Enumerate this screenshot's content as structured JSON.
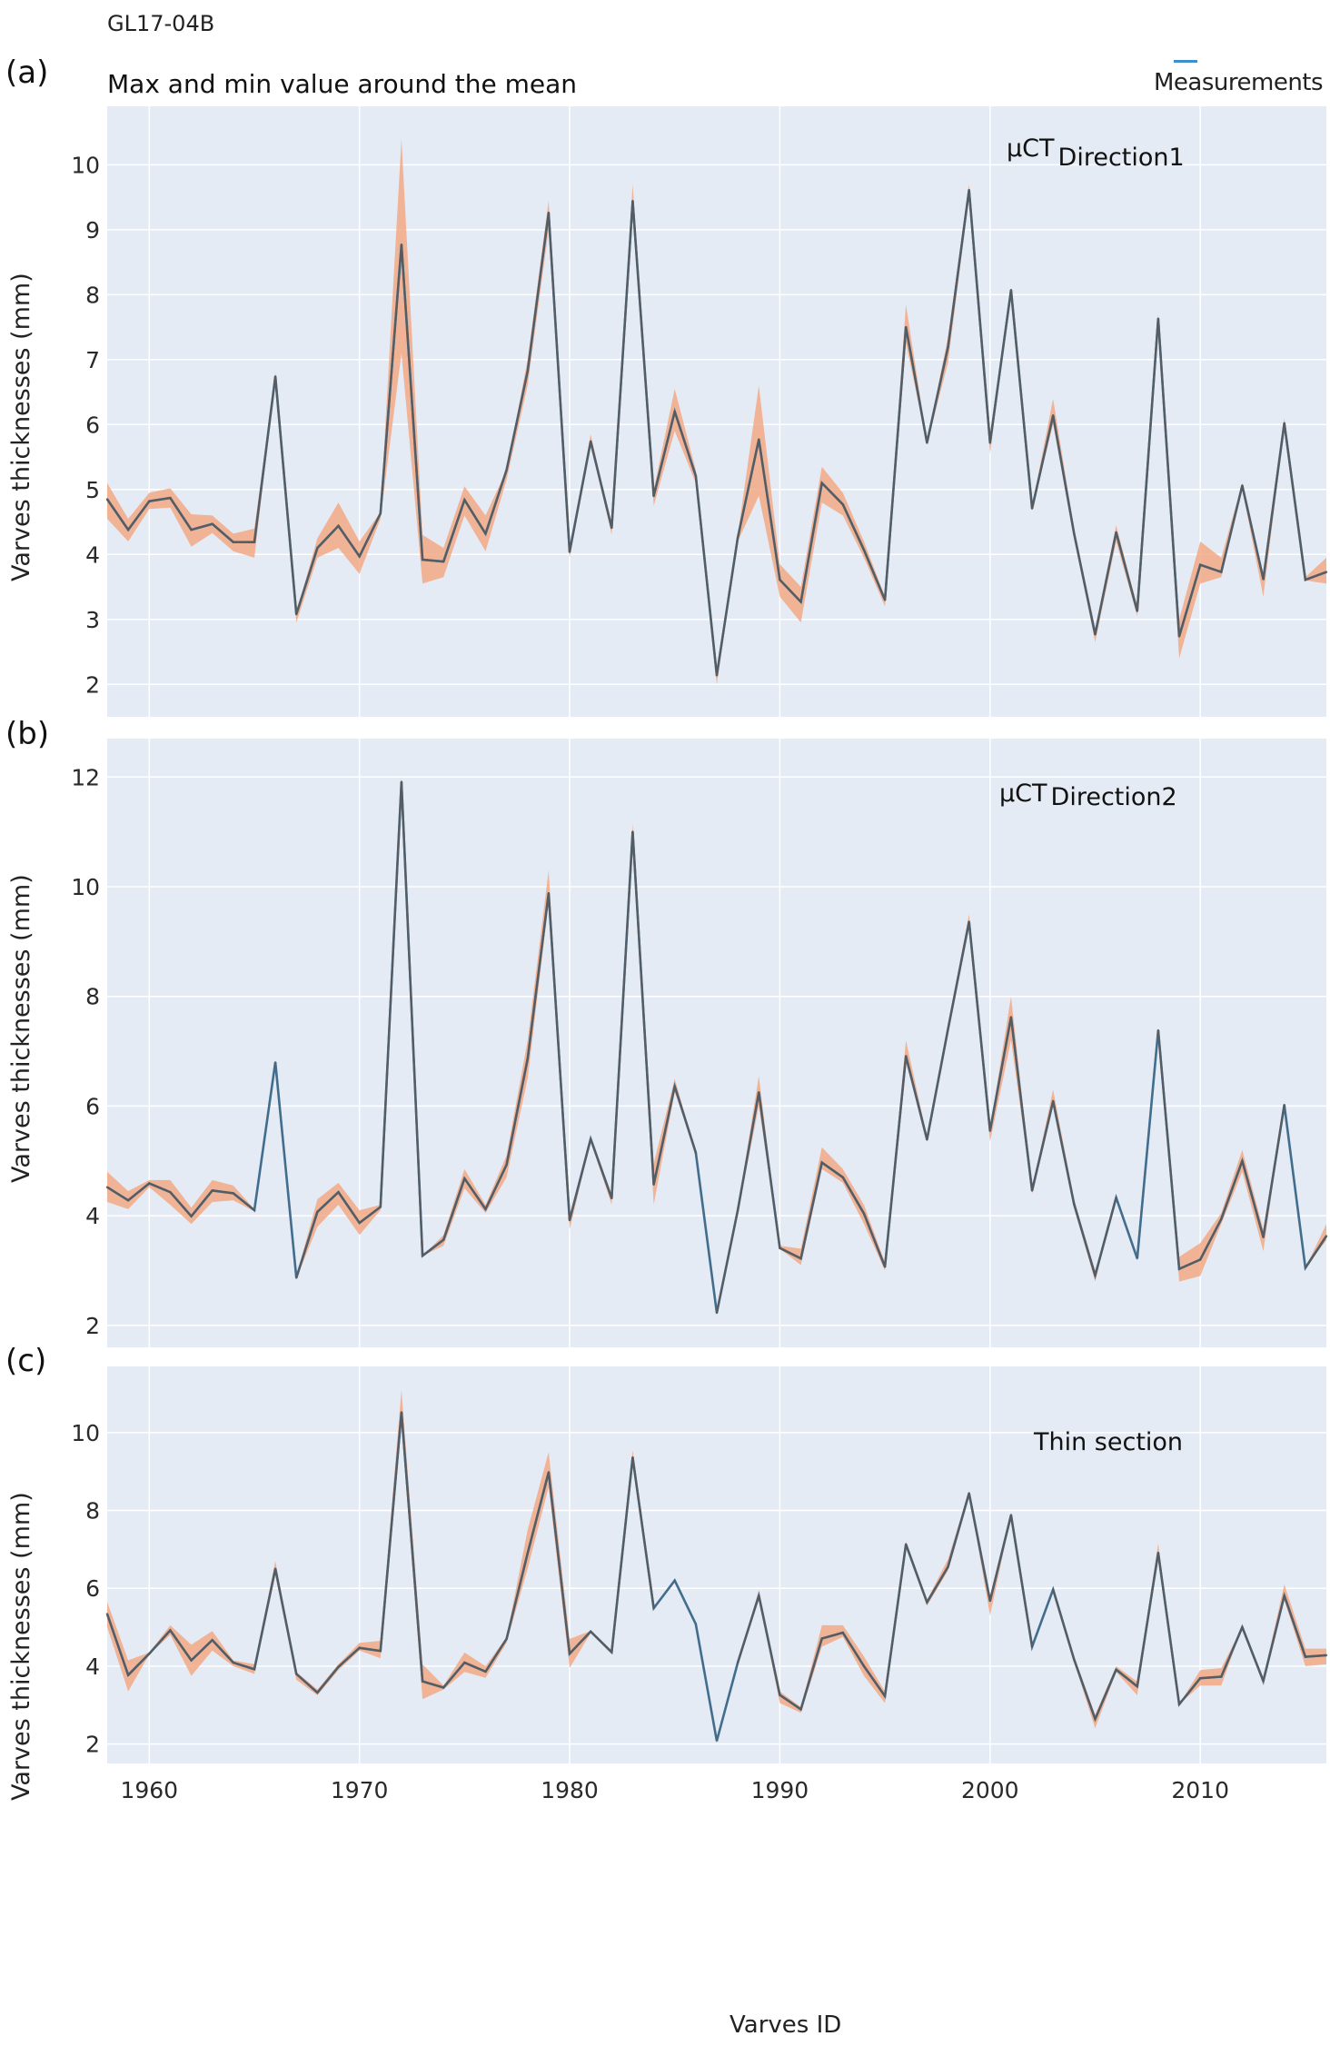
{
  "figure": {
    "core_id": "GL17-04B",
    "title": "Max and min value around the mean",
    "legend": {
      "label": "Measurements",
      "color": "#3a8fd0"
    },
    "colors": {
      "background": "#e5ebf5",
      "grid": "#ffffff",
      "band": "#f4a57e",
      "mean_line": "#5a5a5a",
      "measure_line": "#3a78a8"
    },
    "x_axis_label": "Varves ID"
  },
  "chart_data": [
    {
      "type": "line",
      "panel_label": "(a)",
      "annotation": "µCT Direction1",
      "annotation_main": "µCT",
      "annotation_sub": "Direction1",
      "ylabel": "Varves thicknesses (mm)",
      "xlabel": "",
      "xlim": [
        1958,
        2016
      ],
      "ylim": [
        1.5,
        10.9
      ],
      "yticks": [
        2,
        3,
        4,
        5,
        6,
        7,
        8,
        9,
        10
      ],
      "xticks": [
        1960,
        1970,
        1980,
        1990,
        2000,
        2010
      ],
      "show_xtick_labels": false,
      "grid": true,
      "x": [
        1958,
        1959,
        1960,
        1961,
        1962,
        1963,
        1964,
        1965,
        1966,
        1967,
        1968,
        1969,
        1970,
        1971,
        1972,
        1973,
        1974,
        1975,
        1976,
        1977,
        1978,
        1979,
        1980,
        1981,
        1982,
        1983,
        1984,
        1985,
        1986,
        1987,
        1988,
        1989,
        1990,
        1991,
        1992,
        1993,
        1994,
        1995,
        1996,
        1997,
        1998,
        1999,
        2000,
        2001,
        2002,
        2003,
        2004,
        2005,
        2006,
        2007,
        2008,
        2009,
        2010,
        2011,
        2012,
        2013,
        2014,
        2015,
        2016
      ],
      "series": [
        {
          "name": "Mean",
          "values": [
            4.85,
            4.38,
            4.82,
            4.87,
            4.38,
            4.47,
            4.19,
            4.19,
            6.74,
            3.08,
            4.1,
            4.44,
            3.97,
            4.63,
            8.77,
            3.92,
            3.89,
            4.84,
            4.32,
            5.3,
            6.82,
            9.26,
            4.04,
            5.74,
            4.41,
            9.44,
            4.9,
            6.2,
            5.21,
            2.14,
            4.26,
            5.77,
            3.61,
            3.27,
            5.1,
            4.77,
            4.07,
            3.3,
            7.5,
            5.72,
            7.19,
            9.61,
            5.72,
            8.07,
            4.71,
            6.14,
            4.32,
            2.77,
            4.34,
            3.13,
            7.63,
            2.74,
            3.84,
            3.73,
            5.06,
            3.62,
            6.02,
            3.61,
            3.73
          ]
        },
        {
          "name": "Min",
          "values": [
            4.55,
            4.2,
            4.7,
            4.72,
            4.12,
            4.33,
            4.05,
            3.95,
            6.7,
            2.95,
            3.95,
            4.1,
            3.7,
            4.55,
            7.1,
            3.55,
            3.65,
            4.6,
            4.05,
            5.15,
            6.6,
            9.0,
            3.95,
            5.7,
            4.3,
            9.3,
            4.75,
            5.9,
            5.1,
            2.0,
            4.2,
            4.9,
            3.35,
            2.95,
            4.8,
            4.6,
            3.95,
            3.2,
            7.25,
            5.7,
            6.95,
            9.5,
            5.55,
            8.05,
            4.7,
            6.0,
            4.25,
            2.65,
            4.2,
            3.05,
            7.6,
            2.4,
            3.55,
            3.65,
            5.0,
            3.35,
            5.95,
            3.6,
            3.55
          ]
        },
        {
          "name": "Max",
          "values": [
            5.1,
            4.55,
            4.95,
            5.02,
            4.62,
            4.6,
            4.32,
            4.4,
            6.8,
            3.1,
            4.25,
            4.8,
            4.2,
            4.65,
            10.4,
            4.3,
            4.1,
            5.05,
            4.6,
            5.3,
            7.0,
            9.45,
            4.05,
            5.85,
            4.45,
            9.7,
            5.0,
            6.55,
            5.3,
            2.2,
            4.3,
            6.6,
            3.85,
            3.5,
            5.35,
            4.95,
            4.2,
            3.35,
            7.85,
            5.75,
            7.35,
            9.7,
            5.8,
            8.1,
            4.75,
            6.4,
            4.4,
            2.85,
            4.45,
            3.2,
            7.7,
            3.0,
            4.2,
            3.95,
            5.1,
            3.7,
            6.1,
            3.65,
            3.95
          ]
        }
      ]
    },
    {
      "type": "line",
      "panel_label": "(b)",
      "annotation": "µCT Direction2",
      "annotation_main": "µCT",
      "annotation_sub": "Direction2",
      "ylabel": "Varves thicknesses (mm)",
      "xlabel": "",
      "xlim": [
        1958,
        2016
      ],
      "ylim": [
        1.6,
        12.7
      ],
      "yticks": [
        2,
        4,
        6,
        8,
        10,
        12
      ],
      "xticks": [
        1960,
        1970,
        1980,
        1990,
        2000,
        2010
      ],
      "show_xtick_labels": false,
      "grid": true,
      "x": [
        1958,
        1959,
        1960,
        1961,
        1962,
        1963,
        1964,
        1965,
        1966,
        1967,
        1968,
        1969,
        1970,
        1971,
        1972,
        1973,
        1974,
        1975,
        1976,
        1977,
        1978,
        1979,
        1980,
        1981,
        1982,
        1983,
        1984,
        1985,
        1986,
        1987,
        1988,
        1989,
        1990,
        1991,
        1992,
        1993,
        1994,
        1995,
        1996,
        1997,
        1998,
        1999,
        2000,
        2001,
        2002,
        2003,
        2004,
        2005,
        2006,
        2007,
        2008,
        2009,
        2010,
        2011,
        2012,
        2013,
        2014,
        2015,
        2016
      ],
      "series": [
        {
          "name": "Mean",
          "values": [
            4.52,
            4.28,
            4.59,
            4.43,
            3.99,
            4.46,
            4.41,
            4.1,
            6.8,
            2.87,
            4.07,
            4.43,
            3.87,
            4.16,
            11.91,
            3.27,
            3.56,
            4.68,
            4.12,
            4.93,
            6.86,
            9.88,
            3.92,
            5.4,
            4.32,
            11.0,
            4.57,
            6.36,
            5.15,
            2.23,
            4.1,
            6.25,
            3.41,
            3.22,
            4.97,
            4.7,
            4.04,
            3.07,
            6.91,
            5.39,
            7.4,
            9.36,
            5.55,
            7.62,
            4.46,
            6.09,
            4.21,
            2.91,
            4.33,
            3.22,
            7.38,
            3.03,
            3.2,
            3.94,
            5.0,
            3.61,
            6.02,
            3.05,
            3.63
          ]
        },
        {
          "name": "Min",
          "values": [
            4.25,
            4.12,
            4.52,
            4.2,
            3.85,
            4.25,
            4.28,
            4.08,
            6.8,
            2.85,
            3.8,
            4.2,
            3.65,
            4.1,
            11.9,
            3.27,
            3.45,
            4.5,
            4.05,
            4.7,
            6.5,
            9.7,
            3.75,
            5.35,
            4.2,
            11.0,
            4.2,
            6.25,
            5.15,
            2.2,
            4.05,
            6.0,
            3.4,
            3.1,
            4.85,
            4.6,
            3.85,
            3.0,
            6.8,
            5.35,
            7.3,
            9.3,
            5.35,
            7.2,
            4.4,
            6.0,
            4.15,
            2.8,
            4.33,
            3.22,
            7.38,
            2.8,
            2.9,
            3.85,
            4.8,
            3.35,
            6.02,
            3.05,
            3.55
          ]
        },
        {
          "name": "Max",
          "values": [
            4.8,
            4.45,
            4.65,
            4.65,
            4.15,
            4.65,
            4.55,
            4.12,
            6.8,
            2.9,
            4.3,
            4.6,
            4.1,
            4.2,
            12.0,
            3.27,
            3.65,
            4.85,
            4.2,
            5.1,
            7.2,
            10.3,
            4.0,
            5.45,
            4.35,
            11.15,
            4.95,
            6.5,
            5.15,
            2.25,
            4.15,
            6.55,
            3.45,
            3.4,
            5.25,
            4.85,
            4.2,
            3.15,
            7.2,
            5.45,
            7.5,
            9.5,
            5.6,
            8.0,
            4.5,
            6.3,
            4.3,
            3.0,
            4.33,
            3.22,
            7.38,
            3.25,
            3.5,
            4.05,
            5.2,
            3.75,
            6.02,
            3.05,
            3.85
          ]
        }
      ]
    },
    {
      "type": "line",
      "panel_label": "(c)",
      "annotation": "Thin section",
      "ylabel": "Varves thicknesses (mm)",
      "xlabel": "Varves ID",
      "xlim": [
        1958,
        2016
      ],
      "ylim": [
        1.5,
        11.7
      ],
      "yticks": [
        2,
        4,
        6,
        8,
        10
      ],
      "xticks": [
        1960,
        1970,
        1980,
        1990,
        2000,
        2010
      ],
      "show_xtick_labels": true,
      "grid": true,
      "x": [
        1958,
        1959,
        1960,
        1961,
        1962,
        1963,
        1964,
        1965,
        1966,
        1967,
        1968,
        1969,
        1970,
        1971,
        1972,
        1973,
        1974,
        1975,
        1976,
        1977,
        1978,
        1979,
        1980,
        1981,
        1982,
        1983,
        1984,
        1985,
        1986,
        1987,
        1988,
        1989,
        1990,
        1991,
        1992,
        1993,
        1994,
        1995,
        1996,
        1997,
        1998,
        1999,
        2000,
        2001,
        2002,
        2003,
        2004,
        2005,
        2006,
        2007,
        2008,
        2009,
        2010,
        2011,
        2012,
        2013,
        2014,
        2015,
        2016
      ],
      "series": [
        {
          "name": "Mean",
          "values": [
            5.34,
            3.77,
            4.32,
            4.92,
            4.15,
            4.67,
            4.09,
            3.92,
            6.5,
            3.8,
            3.32,
            3.98,
            4.47,
            4.39,
            10.52,
            3.61,
            3.45,
            4.09,
            3.86,
            4.7,
            6.9,
            8.98,
            4.32,
            4.89,
            4.36,
            9.36,
            5.49,
            6.2,
            5.08,
            2.08,
            4.09,
            5.81,
            3.26,
            2.89,
            4.71,
            4.86,
            4.0,
            3.23,
            7.13,
            5.64,
            6.55,
            8.44,
            5.68,
            7.88,
            4.5,
            5.97,
            4.17,
            2.64,
            3.91,
            3.48,
            6.91,
            3.02,
            3.69,
            3.73,
            5.0,
            3.62,
            5.81,
            4.24,
            4.28
          ]
        },
        {
          "name": "Min",
          "values": [
            5.0,
            3.35,
            4.3,
            4.8,
            3.75,
            4.4,
            4.0,
            3.8,
            6.4,
            3.65,
            3.25,
            3.9,
            4.4,
            4.2,
            10.2,
            3.15,
            3.4,
            3.85,
            3.7,
            4.6,
            6.5,
            8.6,
            3.95,
            4.85,
            4.3,
            9.3,
            5.45,
            6.2,
            5.08,
            2.05,
            4.09,
            5.7,
            3.05,
            2.8,
            4.5,
            4.75,
            3.75,
            3.05,
            7.05,
            5.55,
            6.45,
            8.4,
            5.3,
            7.85,
            4.5,
            5.97,
            4.1,
            2.4,
            3.85,
            3.25,
            6.8,
            3.02,
            3.5,
            3.5,
            5.0,
            3.5,
            5.7,
            4.0,
            4.05
          ]
        },
        {
          "name": "Max",
          "values": [
            5.65,
            4.15,
            4.35,
            5.05,
            4.55,
            4.9,
            4.15,
            4.05,
            6.7,
            3.85,
            3.4,
            4.05,
            4.6,
            4.65,
            11.1,
            4.05,
            3.5,
            4.35,
            4.0,
            4.75,
            7.5,
            9.5,
            4.7,
            4.9,
            4.4,
            9.55,
            5.5,
            6.2,
            5.08,
            2.1,
            4.09,
            5.95,
            3.35,
            2.95,
            5.05,
            5.05,
            4.25,
            3.35,
            7.2,
            5.7,
            6.75,
            8.5,
            5.8,
            7.95,
            4.5,
            5.97,
            4.25,
            2.75,
            4.0,
            3.6,
            7.15,
            3.02,
            3.9,
            3.95,
            5.0,
            3.7,
            6.1,
            4.45,
            4.45
          ]
        }
      ]
    }
  ]
}
